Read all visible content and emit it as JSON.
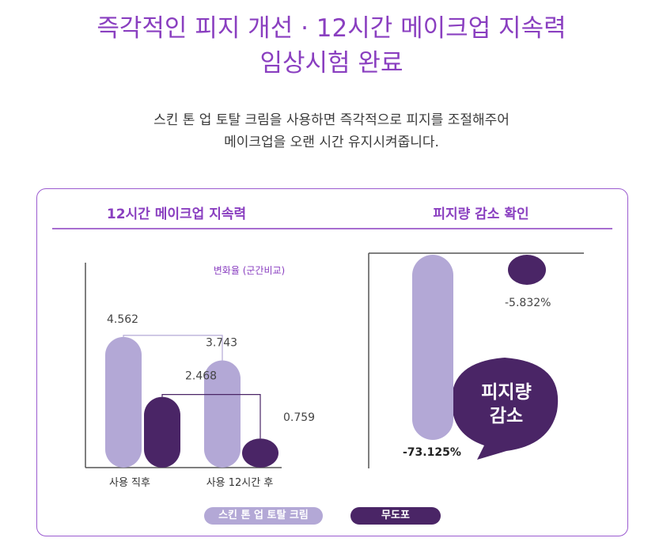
{
  "header": {
    "title_line1": "즉각적인 피지 개선 · 12시간 메이크업 지속력",
    "title_line2": "임상시험 완료",
    "desc_line1": "스킨 톤 업 토탈 크림을 사용하면 즉각적으로 피지를 조절해주어",
    "desc_line2": "메이크업을 오랜 시간 유지시켜줍니다."
  },
  "colors": {
    "accent": "#8a3fc0",
    "light_purple": "#b3a8d6",
    "dark_purple": "#4a2566",
    "axis": "#555555"
  },
  "chart_data": [
    {
      "type": "bar",
      "title": "12시간 메이크업 지속력",
      "note": "변화율 (군간비교)",
      "categories": [
        "사용 직후",
        "사용 12시간 후"
      ],
      "series": [
        {
          "name": "스킨 톤 업 토탈 크림",
          "values": [
            4.562,
            3.743
          ]
        },
        {
          "name": "무도포",
          "values": [
            2.468,
            0.759
          ]
        }
      ],
      "value_labels": [
        [
          "4.562",
          "3.743"
        ],
        [
          "2.468",
          "0.759"
        ]
      ],
      "ylim": [
        0,
        5.5
      ]
    },
    {
      "type": "bar",
      "title": "피지량 감소 확인",
      "categories": [
        ""
      ],
      "series": [
        {
          "name": "스킨 톤 업 토탈 크림",
          "values": [
            -73.125
          ]
        },
        {
          "name": "무도포",
          "values": [
            -5.832
          ]
        }
      ],
      "value_labels": [
        "-73.125%",
        "-5.832%"
      ],
      "callout_line1": "피지량",
      "callout_line2": "감소",
      "ylim": [
        -80,
        0
      ]
    }
  ],
  "legend": {
    "items": [
      {
        "label": "스킨 톤 업 토탈 크림"
      },
      {
        "label": "무도포"
      }
    ]
  }
}
